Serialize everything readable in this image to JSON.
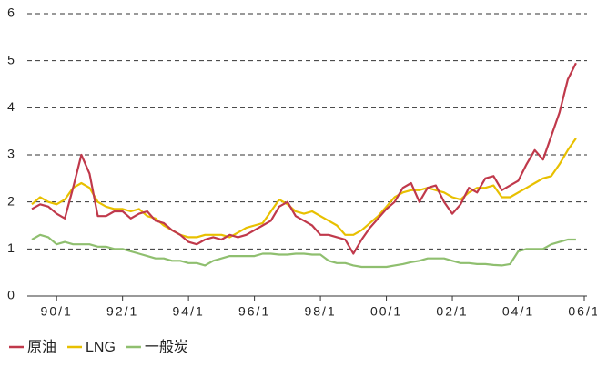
{
  "chart_data": {
    "type": "line",
    "categories": [
      null,
      null,
      null,
      "90/1",
      null,
      null,
      null,
      null,
      null,
      null,
      null,
      "92/1",
      null,
      null,
      null,
      null,
      null,
      null,
      null,
      "94/1",
      null,
      null,
      null,
      null,
      null,
      null,
      null,
      "96/1",
      null,
      null,
      null,
      null,
      null,
      null,
      null,
      "98/1",
      null,
      null,
      null,
      null,
      null,
      null,
      null,
      "00/1",
      null,
      null,
      null,
      null,
      null,
      null,
      null,
      "02/1",
      null,
      null,
      null,
      null,
      null,
      null,
      null,
      "04/1",
      null,
      null,
      null,
      null,
      null,
      null,
      null,
      "06/1"
    ],
    "series": [
      {
        "name": "原油",
        "color": "#c0394b",
        "values": [
          1.85,
          1.95,
          1.9,
          1.75,
          1.65,
          2.3,
          3.0,
          2.6,
          1.7,
          1.7,
          1.8,
          1.8,
          1.65,
          1.75,
          1.8,
          1.6,
          1.55,
          1.4,
          1.3,
          1.15,
          1.1,
          1.2,
          1.25,
          1.2,
          1.3,
          1.25,
          1.3,
          1.4,
          1.5,
          1.6,
          1.9,
          2.0,
          1.7,
          1.6,
          1.5,
          1.3,
          1.3,
          1.25,
          1.2,
          0.9,
          1.2,
          1.45,
          1.65,
          1.85,
          2.0,
          2.3,
          2.4,
          2.0,
          2.3,
          2.35,
          2.0,
          1.75,
          1.95,
          2.3,
          2.2,
          2.5,
          2.55,
          2.25,
          2.35,
          2.45,
          2.8,
          3.1,
          2.9,
          3.4,
          3.9,
          4.6,
          4.95,
          null
        ]
      },
      {
        "name": "LNG",
        "color": "#e8c000",
        "values": [
          1.95,
          2.1,
          2.0,
          1.95,
          2.05,
          2.3,
          2.4,
          2.3,
          2.0,
          1.9,
          1.85,
          1.85,
          1.8,
          1.85,
          1.7,
          1.65,
          1.5,
          1.4,
          1.3,
          1.25,
          1.25,
          1.3,
          1.3,
          1.3,
          1.25,
          1.35,
          1.45,
          1.5,
          1.55,
          1.8,
          2.05,
          1.95,
          1.8,
          1.75,
          1.8,
          1.7,
          1.6,
          1.5,
          1.3,
          1.3,
          1.4,
          1.55,
          1.7,
          1.9,
          2.1,
          2.2,
          2.25,
          2.25,
          2.3,
          2.25,
          2.2,
          2.1,
          2.05,
          2.2,
          2.3,
          2.3,
          2.35,
          2.1,
          2.1,
          2.2,
          2.3,
          2.4,
          2.5,
          2.55,
          2.8,
          3.1,
          3.35,
          null
        ]
      },
      {
        "name": "一般炭",
        "color": "#8fbf6f",
        "values": [
          1.2,
          1.3,
          1.25,
          1.1,
          1.15,
          1.1,
          1.1,
          1.1,
          1.05,
          1.05,
          1.0,
          1.0,
          0.95,
          0.9,
          0.85,
          0.8,
          0.8,
          0.75,
          0.75,
          0.7,
          0.7,
          0.65,
          0.75,
          0.8,
          0.85,
          0.85,
          0.85,
          0.85,
          0.9,
          0.9,
          0.88,
          0.88,
          0.9,
          0.9,
          0.88,
          0.88,
          0.75,
          0.7,
          0.7,
          0.65,
          0.62,
          0.62,
          0.62,
          0.62,
          0.65,
          0.68,
          0.72,
          0.75,
          0.8,
          0.8,
          0.8,
          0.75,
          0.7,
          0.7,
          0.68,
          0.68,
          0.66,
          0.65,
          0.68,
          0.95,
          1.0,
          1.0,
          1.0,
          1.1,
          1.15,
          1.2,
          1.2,
          null
        ]
      }
    ],
    "ylim": [
      0,
      6
    ],
    "yticks": [
      0,
      1,
      2,
      3,
      4,
      5,
      6
    ],
    "grid": true,
    "legend": "bottom"
  }
}
